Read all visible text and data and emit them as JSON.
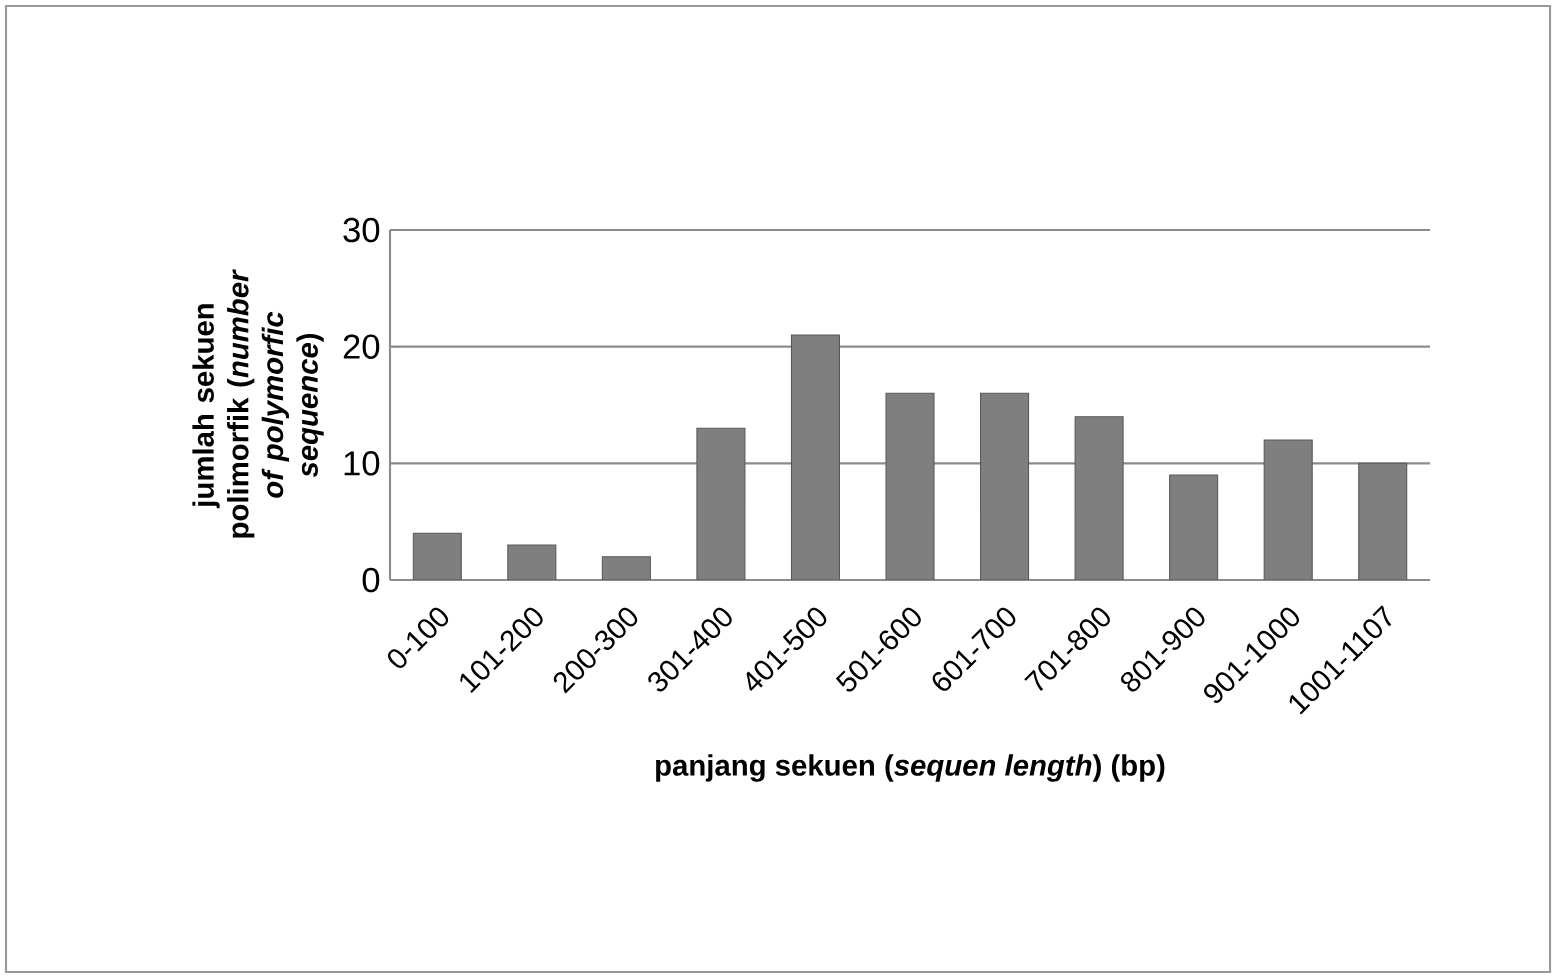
{
  "chart_data": {
    "type": "bar",
    "xlabel": "panjang sekuen (*sequen length*) (bp)",
    "ylabel": "jumlah sekuen polimorfik (*number of polymorfic sequence*)",
    "categories": [
      "0-100",
      "101-200",
      "200-300",
      "301-400",
      "401-500",
      "501-600",
      "601-700",
      "701-800",
      "801-900",
      "901-1000",
      "1001-1107"
    ],
    "values": [
      4,
      3,
      2,
      13,
      21,
      16,
      16,
      14,
      9,
      12,
      10
    ],
    "color": "#7f7f7f",
    "ylim": [
      0,
      30
    ],
    "yticks": [
      0,
      10,
      20,
      30
    ],
    "grid": "y"
  }
}
